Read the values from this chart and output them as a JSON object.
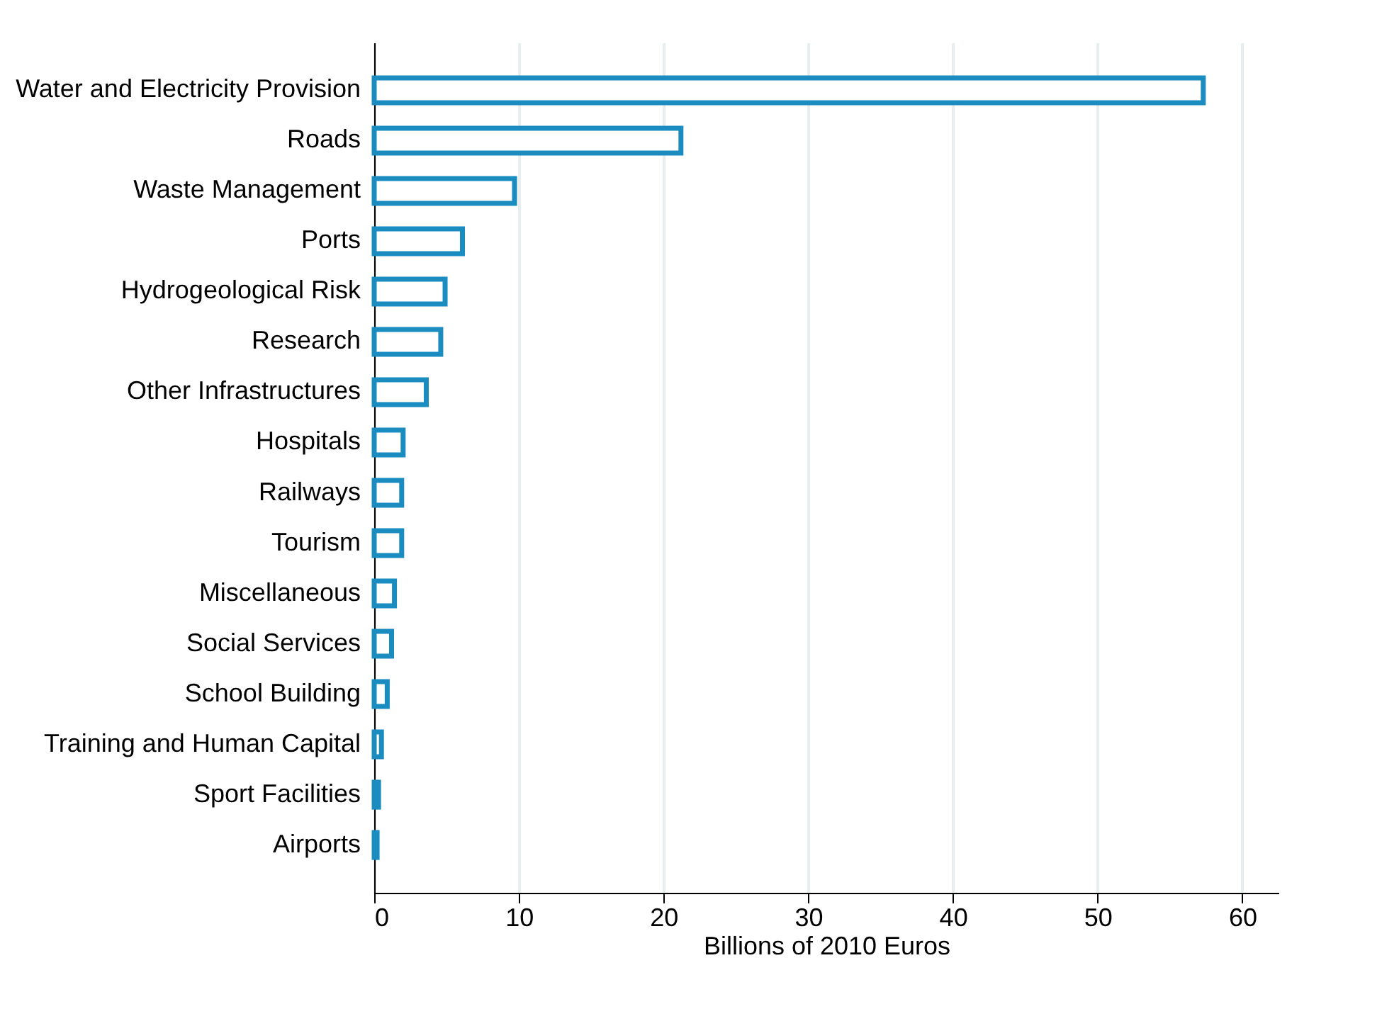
{
  "chart_data": {
    "type": "bar",
    "orientation": "horizontal",
    "xlabel": "Billions of 2010 Euros",
    "categories": [
      "Water and Electricity Provision",
      "Roads",
      "Waste Management",
      "Ports",
      "Hydrogeological Risk",
      "Research",
      "Other Infrastructures",
      "Hospitals",
      "Railways",
      "Tourism",
      "Miscellaneous",
      "Social Services",
      "School Building",
      "Training and Human Capital",
      "Sport Facilities",
      "Airports"
    ],
    "values": [
      57.3,
      21.2,
      9.7,
      6.1,
      4.9,
      4.6,
      3.6,
      2.0,
      1.9,
      1.9,
      1.4,
      1.2,
      0.9,
      0.5,
      0.3,
      0.2
    ],
    "color": "#1a8cbf",
    "xlim": [
      0,
      62.5
    ],
    "xticks": [
      0,
      10,
      20,
      30,
      40,
      50,
      60
    ],
    "grid": "x"
  }
}
